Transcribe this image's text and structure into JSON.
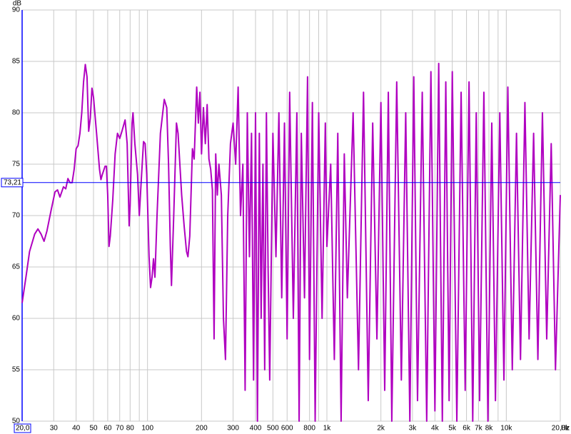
{
  "chart_data": {
    "type": "line",
    "x_unit": "Hz",
    "y_unit": "dB",
    "log_x": true,
    "color": "#b000c0",
    "xlim": [
      20,
      20000
    ],
    "ylim": [
      50,
      90
    ],
    "xticks": [
      {
        "value": 20,
        "label": "20,0"
      },
      30,
      40,
      50,
      60,
      70,
      80,
      100,
      200,
      300,
      400,
      500,
      600,
      800,
      {
        "value": 1000,
        "label": "1k"
      },
      {
        "value": 2000,
        "label": "2k"
      },
      {
        "value": 3000,
        "label": "3k"
      },
      {
        "value": 4000,
        "label": "4k"
      },
      {
        "value": 5000,
        "label": "5k"
      },
      {
        "value": 6000,
        "label": "6k"
      },
      {
        "value": 7000,
        "label": "7k"
      },
      {
        "value": 8000,
        "label": "8k"
      },
      {
        "value": 10000,
        "label": "10k"
      },
      {
        "value": 20000,
        "label": "20,0k"
      }
    ],
    "xgrid_unlabeled": [
      90,
      700,
      900,
      9000
    ],
    "yticks": [
      50,
      55,
      60,
      65,
      70,
      75,
      80,
      85,
      90
    ],
    "grid": true,
    "cursor": {
      "value": 73.21,
      "label": "73,21"
    },
    "x": [
      20,
      21,
      22,
      23.5,
      24.5,
      25.5,
      26.5,
      27.5,
      29,
      30.5,
      31.5,
      32.5,
      34,
      35,
      36,
      37,
      38,
      39,
      40,
      41,
      42,
      43,
      44,
      45,
      46,
      47,
      48,
      49,
      50,
      52,
      54,
      55,
      56,
      58,
      59,
      60,
      61,
      62,
      64,
      66,
      68,
      70,
      72,
      75,
      77,
      79,
      80,
      82,
      83,
      85,
      88,
      90,
      92,
      95,
      97,
      99,
      102,
      104,
      106,
      108,
      110,
      113,
      118,
      124,
      128,
      131,
      134,
      136,
      140,
      145,
      148,
      155,
      160,
      165,
      168,
      172,
      178,
      182,
      188,
      192,
      196,
      200,
      205,
      210,
      215,
      220,
      225,
      230,
      235,
      240,
      245,
      250,
      258,
      265,
      272,
      280,
      290,
      300,
      310,
      320,
      330,
      340,
      350,
      360,
      370,
      380,
      390,
      400,
      410,
      420,
      430,
      440,
      450,
      460,
      470,
      480,
      500,
      520,
      540,
      560,
      580,
      600,
      620,
      650,
      680,
      700,
      720,
      750,
      780,
      800,
      830,
      860,
      900,
      940,
      980,
      1000,
      1050,
      1100,
      1150,
      1200,
      1250,
      1300,
      1400,
      1500,
      1600,
      1700,
      1800,
      1900,
      2000,
      2100,
      2200,
      2300,
      2450,
      2600,
      2750,
      2900,
      3050,
      3200,
      3400,
      3600,
      3800,
      4000,
      4200,
      4400,
      4600,
      4800,
      5000,
      5300,
      5600,
      5900,
      6200,
      6500,
      6800,
      7100,
      7500,
      7900,
      8300,
      8700,
      9200,
      9700,
      10200,
      10800,
      11400,
      12000,
      12700,
      13400,
      14200,
      15000,
      15900,
      16800,
      17800,
      18800,
      20000
    ],
    "values": [
      61.5,
      64,
      66.5,
      68.2,
      68.7,
      68.2,
      67.5,
      68.5,
      70.5,
      72.3,
      72.5,
      71.8,
      72.8,
      72.6,
      73.6,
      73.2,
      73.2,
      74.5,
      76.5,
      76.8,
      78,
      80,
      83,
      84.7,
      83.5,
      78.2,
      79.5,
      82.4,
      81.5,
      78,
      74.5,
      73.5,
      74,
      74.8,
      74.8,
      72,
      67,
      68,
      71.5,
      76,
      78,
      77.5,
      78.2,
      79.3,
      77,
      69,
      71,
      79,
      80,
      77,
      74,
      70,
      73,
      77.2,
      77,
      74,
      66,
      63,
      64,
      65.8,
      64,
      70,
      78,
      81.3,
      80.5,
      75,
      67,
      63.2,
      70,
      79,
      78,
      72,
      69,
      66.5,
      66,
      68,
      76.5,
      75.5,
      82.5,
      79,
      82,
      76,
      80.5,
      77,
      80.8,
      75.5,
      74.5,
      72.5,
      58,
      76,
      72,
      75,
      72,
      60,
      56,
      70,
      77,
      79,
      75,
      82.5,
      70,
      75,
      53,
      80,
      66,
      78,
      54,
      80,
      50,
      78,
      60,
      75,
      55,
      80,
      65,
      54,
      78,
      66,
      80,
      62,
      79,
      58,
      82,
      60,
      80,
      50,
      78,
      62,
      83.5,
      56,
      81,
      50,
      80,
      60,
      79,
      67,
      75,
      56,
      78,
      50,
      76,
      62,
      80,
      55,
      82,
      52,
      79,
      58,
      81,
      53,
      82,
      50,
      83,
      54,
      80,
      50,
      83.5,
      52,
      82,
      50,
      84,
      51,
      84.8,
      50,
      83,
      52,
      84,
      50,
      82,
      53,
      83,
      50,
      80,
      52,
      82,
      50,
      79,
      52,
      80,
      54,
      82.5,
      55,
      78,
      56,
      81,
      58,
      78,
      56,
      80,
      58,
      77,
      55,
      72
    ]
  }
}
